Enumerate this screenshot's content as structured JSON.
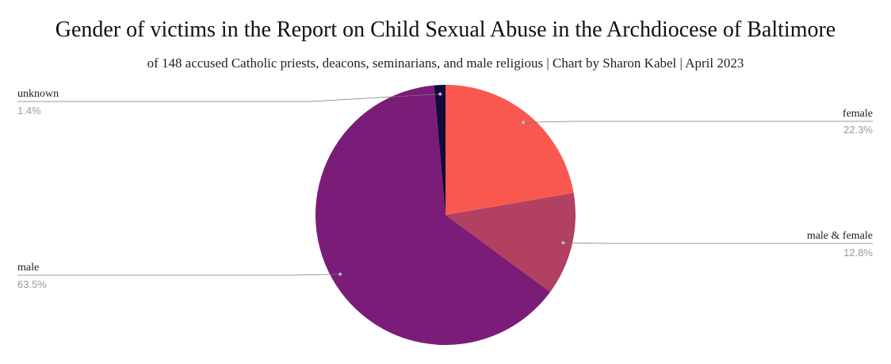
{
  "chart_data": {
    "type": "pie",
    "title": "Gender of victims in the Report on Child Sexual Abuse in the Archdiocese of Baltimore",
    "subtitle": "of 148 accused Catholic priests, deacons, seminarians, and male religious | Chart by Sharon Kabel | April 2023",
    "slices": [
      {
        "label": "female",
        "value": 22.3,
        "value_label": "22.3%",
        "color": "#f95850",
        "label_side": "right"
      },
      {
        "label": "male & female",
        "value": 12.8,
        "value_label": "12.8%",
        "color": "#b24060",
        "label_side": "right"
      },
      {
        "label": "male",
        "value": 63.5,
        "value_label": "63.5%",
        "color": "#7b1c78",
        "label_side": "left"
      },
      {
        "label": "unknown",
        "value": 1.4,
        "value_label": "1.4%",
        "color": "#120a3a",
        "label_side": "left"
      }
    ],
    "start_angle": "top",
    "direction": "clockwise"
  }
}
